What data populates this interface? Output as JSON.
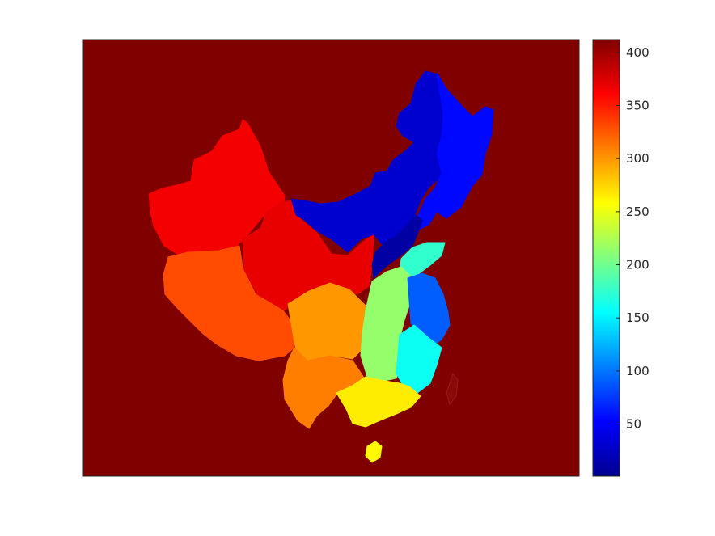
{
  "figure": {
    "background": "#ffffff",
    "map_background_color": "#800000",
    "border_color": "#262626"
  },
  "map": {
    "region": "China",
    "colormap": "jet",
    "regions": [
      {
        "name": "xinjiang",
        "value": 365
      },
      {
        "name": "tibet",
        "value": 330
      },
      {
        "name": "qinghai-gansu",
        "value": 370
      },
      {
        "name": "sichuan",
        "value": 300
      },
      {
        "name": "yunnan-guizhou",
        "value": 310
      },
      {
        "name": "inner-mongolia",
        "value": 30
      },
      {
        "name": "northeast",
        "value": 55
      },
      {
        "name": "north-china-plain",
        "value": 10
      },
      {
        "name": "shandong",
        "value": 175
      },
      {
        "name": "central-china",
        "value": 215
      },
      {
        "name": "jiangsu-zhejiang",
        "value": 90
      },
      {
        "name": "fujian-jiangxi",
        "value": 160
      },
      {
        "name": "guangdong-guangxi",
        "value": 265
      },
      {
        "name": "hainan",
        "value": 260
      }
    ]
  },
  "colorbar": {
    "min": 1,
    "max": 412,
    "ticks": [
      50,
      100,
      150,
      200,
      250,
      300,
      350,
      400
    ],
    "tick_labels": [
      "50",
      "100",
      "150",
      "200",
      "250",
      "300",
      "350",
      "400"
    ],
    "colors": [
      "#00008f",
      "#0000ff",
      "#0080ff",
      "#00ffff",
      "#80ff80",
      "#ffff00",
      "#ff8000",
      "#ff0000",
      "#800000"
    ]
  }
}
